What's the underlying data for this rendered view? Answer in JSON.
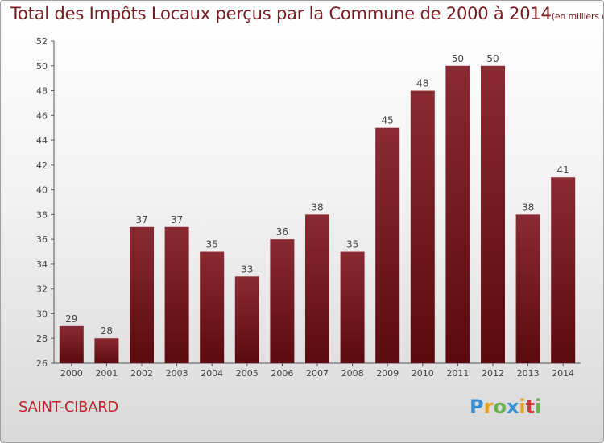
{
  "header": {
    "title": "Total des Impôts Locaux perçus par la Commune de 2000 à 2014",
    "unit": "(en milliers d'€)"
  },
  "footer": {
    "commune": "SAINT-CIBARD",
    "logo": {
      "letters": [
        "P",
        "r",
        "o",
        "x",
        "i",
        "t",
        "i"
      ],
      "colors": [
        "#3a8fd0",
        "#e8a020",
        "#6ab04c",
        "#3a8fd0",
        "#e8a020",
        "#d03a3a",
        "#6ab04c"
      ]
    }
  },
  "chart_data": {
    "type": "bar",
    "title": "Total des Impôts Locaux perçus par la Commune de 2000 à 2014",
    "xlabel": "",
    "ylabel": "",
    "categories": [
      "2000",
      "2001",
      "2002",
      "2003",
      "2004",
      "2005",
      "2006",
      "2007",
      "2008",
      "2009",
      "2010",
      "2011",
      "2012",
      "2013",
      "2014"
    ],
    "values": [
      29,
      28,
      37,
      37,
      35,
      33,
      36,
      38,
      35,
      45,
      48,
      50,
      50,
      38,
      41
    ],
    "ylim": [
      26,
      52
    ],
    "yticks": [
      "26",
      "28",
      "30",
      "32",
      "34",
      "36",
      "38",
      "40",
      "42",
      "44",
      "46",
      "48",
      "50",
      "52"
    ],
    "grid": false,
    "bar_color": "#7a1c22"
  }
}
